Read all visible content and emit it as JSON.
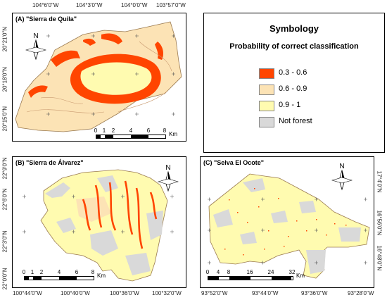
{
  "colors": {
    "class_03_06": "#ff4500",
    "class_06_09": "#fce3b5",
    "class_09_1": "#fffbb0",
    "not_forest": "#d9d9d9"
  },
  "legend": {
    "title": "Symbology",
    "subtitle": "Probability of correct classification",
    "items": [
      {
        "label": "0.3 - 0.6",
        "color": "#ff4500"
      },
      {
        "label": "0.6 - 0.9",
        "color": "#fce3b5"
      },
      {
        "label": "0.9 - 1",
        "color": "#fffbb0"
      },
      {
        "label": "Not forest",
        "color": "#d9d9d9"
      }
    ]
  },
  "panel_a": {
    "title": "(A) \"Sierra de Quila\"",
    "top_ticks": [
      "104°6'0\"W",
      "104°3'0\"W",
      "104°0'0\"W",
      "103°57'0\"W"
    ],
    "left_ticks": [
      "20°21'0\"N",
      "20°18'0\"N",
      "20°15'0\"N"
    ],
    "north": "N",
    "scale_labels": [
      "0",
      "1",
      "2",
      "4",
      "6",
      "8"
    ],
    "scale_unit": "Km"
  },
  "panel_b": {
    "title": "(B) \"Sierra de Álvarez\"",
    "left_ticks": [
      "22°9'0\"N",
      "22°6'0\"N",
      "22°3'0\"N",
      "22°0'0\"N"
    ],
    "bottom_ticks": [
      "100°44'0\"W",
      "100°40'0\"W",
      "100°36'0\"W",
      "100°32'0\"W"
    ],
    "north": "N",
    "scale_labels": [
      "0",
      "1",
      "2",
      "4",
      "6",
      "8"
    ],
    "scale_unit": "Km"
  },
  "panel_c": {
    "title": "(C) \"Selva El Ocote\"",
    "right_ticks": [
      "17°4'0\"N",
      "16°56'0\"N",
      "16°48'0\"N"
    ],
    "bottom_ticks": [
      "93°52'0\"W",
      "93°44'0\"W",
      "93°36'0\"W",
      "93°28'0\"W"
    ],
    "north": "N",
    "scale_labels": [
      "0",
      "4",
      "8",
      "16",
      "24",
      "32"
    ],
    "scale_unit": "Km"
  }
}
